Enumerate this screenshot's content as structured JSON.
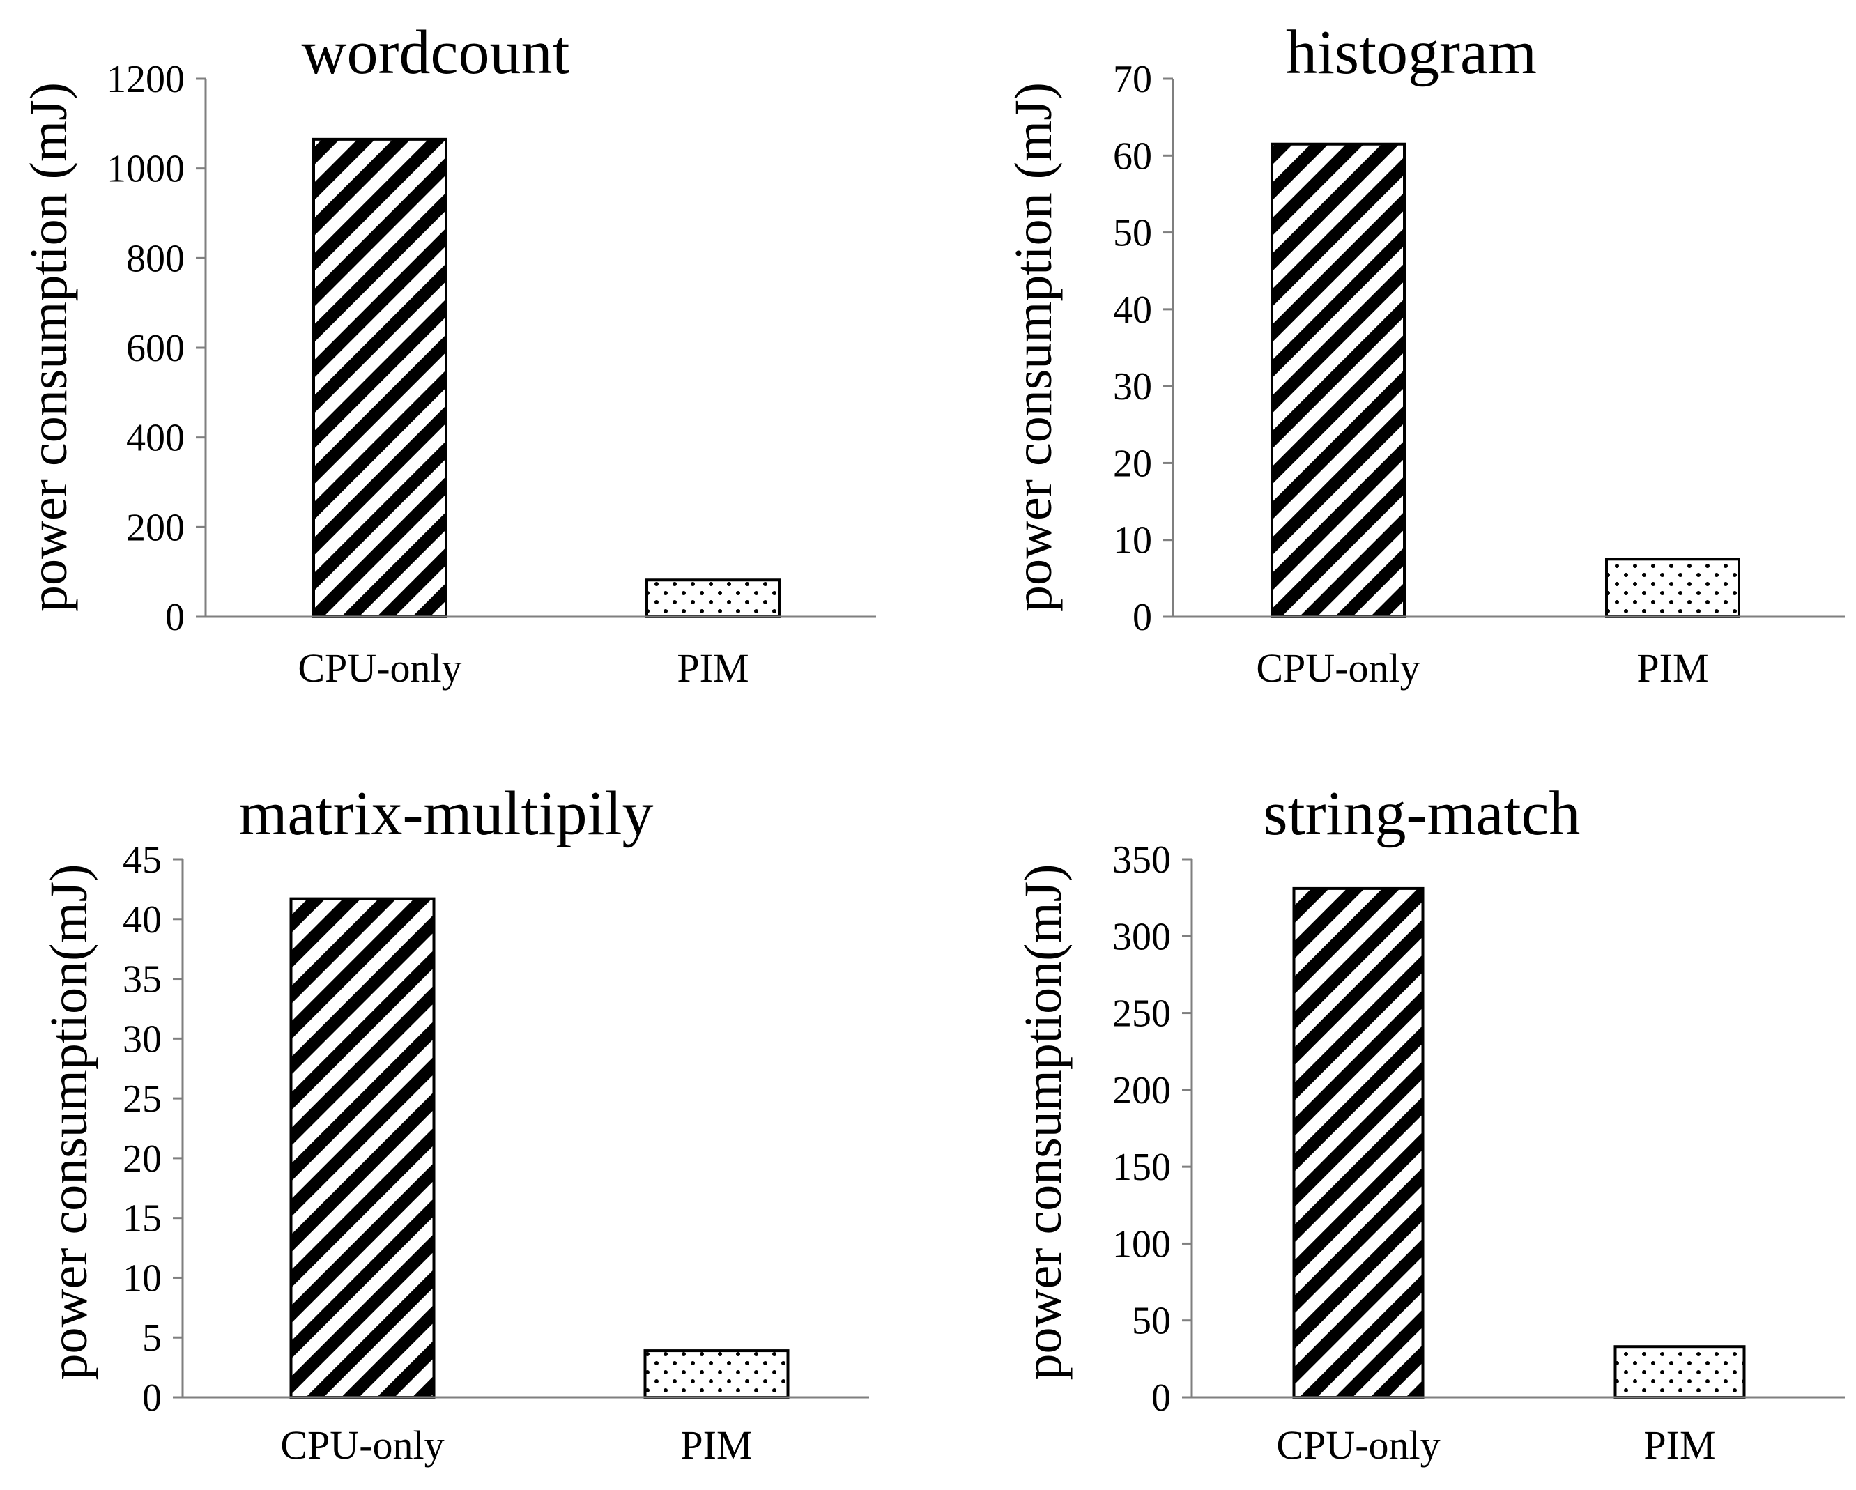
{
  "chart_data": [
    {
      "type": "bar",
      "title": "wordcount",
      "ylabel": "power consumption (mJ)",
      "xlabel": "",
      "categories": [
        "CPU-only",
        "PIM"
      ],
      "values": [
        1065,
        82
      ],
      "patterns": [
        "diagonal-stripes",
        "dots"
      ],
      "ylim": [
        0,
        1200
      ],
      "ytick_step": 200,
      "yticks": [
        "0",
        "200",
        "400",
        "600",
        "800",
        "1000",
        "1200"
      ]
    },
    {
      "type": "bar",
      "title": "histogram",
      "ylabel": "power consumption (mJ)",
      "xlabel": "",
      "categories": [
        "CPU-only",
        "PIM"
      ],
      "values": [
        61.5,
        7.5
      ],
      "patterns": [
        "diagonal-stripes",
        "dots"
      ],
      "ylim": [
        0,
        70
      ],
      "ytick_step": 10,
      "yticks": [
        "0",
        "10",
        "20",
        "30",
        "40",
        "50",
        "60",
        "70"
      ]
    },
    {
      "type": "bar",
      "title": "matrix-multipily",
      "ylabel": "power consumption(mJ)",
      "xlabel": "",
      "categories": [
        "CPU-only",
        "PIM"
      ],
      "values": [
        41.7,
        3.9
      ],
      "patterns": [
        "diagonal-stripes",
        "dots"
      ],
      "ylim": [
        0,
        45
      ],
      "ytick_step": 5,
      "yticks": [
        "0",
        "5",
        "10",
        "15",
        "20",
        "25",
        "30",
        "35",
        "40",
        "45"
      ]
    },
    {
      "type": "bar",
      "title": "string-match",
      "ylabel": "power consumption(mJ)",
      "xlabel": "",
      "categories": [
        "CPU-only",
        "PIM"
      ],
      "values": [
        331,
        33
      ],
      "patterns": [
        "diagonal-stripes",
        "dots"
      ],
      "ylim": [
        0,
        350
      ],
      "ytick_step": 50,
      "yticks": [
        "0",
        "50",
        "100",
        "150",
        "200",
        "250",
        "300",
        "350"
      ]
    }
  ],
  "colors": {
    "bar_outline": "#000000",
    "stripe": "#000000",
    "dot": "#000000",
    "axis": "#7f7f7f",
    "background": "#ffffff"
  }
}
